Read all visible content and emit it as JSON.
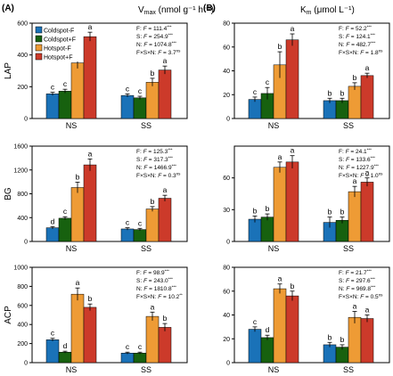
{
  "figure": {
    "panel_a_label": "(A)",
    "panel_b_label": "(B)",
    "col_a_title": "V",
    "col_a_sub": "max",
    "col_a_unit": " (nmol g⁻¹ h⁻¹)",
    "col_b_title": "K",
    "col_b_sub": "m",
    "col_b_unit": " (μmol L⁻¹)"
  },
  "legend": [
    {
      "label": "Coldspot-F",
      "color": "#1a72b8"
    },
    {
      "label": "Coldspot+F",
      "color": "#17610f"
    },
    {
      "label": "Hotspot-F",
      "color": "#ee9b35"
    },
    {
      "label": "Hotspot+F",
      "color": "#cc3a2a"
    }
  ],
  "chart_data": [
    {
      "type": "bar",
      "panel": "A",
      "row": "LAP",
      "ylabel": "LAP",
      "ylim": [
        0,
        600
      ],
      "yticks": [
        0,
        200,
        400,
        600
      ],
      "ytick_labels": [
        "0",
        "200",
        "400",
        "600"
      ],
      "groups": [
        "NS",
        "SS"
      ],
      "series": [
        {
          "name": "Coldspot-F",
          "values": [
            155,
            145
          ],
          "errors": [
            10,
            10
          ],
          "letters": [
            "c",
            "c"
          ]
        },
        {
          "name": "Coldspot+F",
          "values": [
            172,
            130
          ],
          "errors": [
            12,
            10
          ],
          "letters": [
            "c",
            "c"
          ]
        },
        {
          "name": "Hotspot-F",
          "values": [
            350,
            228
          ],
          "errors": [
            35,
            25
          ],
          "letters": [
            "b",
            "b"
          ]
        },
        {
          "name": "Hotspot+F",
          "values": [
            515,
            305
          ],
          "errors": [
            28,
            25
          ],
          "letters": [
            "a",
            "a"
          ]
        }
      ],
      "stats": [
        {
          "factor": "F",
          "value": "111.4",
          "sig": "***"
        },
        {
          "factor": "S",
          "value": "254.9",
          "sig": "***"
        },
        {
          "factor": "N",
          "value": "1074.8",
          "sig": "***"
        },
        {
          "factor": "F×S×N",
          "value": "3.7",
          "sig": "ns"
        }
      ]
    },
    {
      "type": "bar",
      "panel": "B",
      "row": "LAP",
      "ylabel": "",
      "ylim": [
        0,
        80
      ],
      "yticks": [
        0,
        20,
        40,
        60,
        80
      ],
      "ytick_labels": [
        "0",
        "20",
        "40",
        "60",
        "80"
      ],
      "groups": [
        "NS",
        "SS"
      ],
      "series": [
        {
          "name": "Coldspot-F",
          "values": [
            16,
            15
          ],
          "errors": [
            2,
            2
          ],
          "letters": [
            "c",
            "b"
          ]
        },
        {
          "name": "Coldspot+F",
          "values": [
            21,
            15
          ],
          "errors": [
            5,
            2
          ],
          "letters": [
            "c",
            "b"
          ]
        },
        {
          "name": "Hotspot-F",
          "values": [
            45,
            27
          ],
          "errors": [
            11,
            3
          ],
          "letters": [
            "b",
            "b"
          ]
        },
        {
          "name": "Hotspot+F",
          "values": [
            66,
            36
          ],
          "errors": [
            5,
            2
          ],
          "letters": [
            "a",
            "a"
          ]
        }
      ],
      "stats": [
        {
          "factor": "F",
          "value": "52.2",
          "sig": "***"
        },
        {
          "factor": "S",
          "value": "124.1",
          "sig": "***"
        },
        {
          "factor": "N",
          "value": "482.7",
          "sig": "***"
        },
        {
          "factor": "F×S×N",
          "value": "1.8",
          "sig": "ns"
        }
      ]
    },
    {
      "type": "bar",
      "panel": "A",
      "row": "BG",
      "ylabel": "BG",
      "ylim": [
        0,
        1600
      ],
      "yticks": [
        0,
        400,
        800,
        1200,
        1600
      ],
      "ytick_labels": [
        "0",
        "400",
        "800",
        "1200",
        "1600"
      ],
      "groups": [
        "NS",
        "SS"
      ],
      "series": [
        {
          "name": "Coldspot-F",
          "values": [
            230,
            210
          ],
          "errors": [
            20,
            20
          ],
          "letters": [
            "d",
            "c"
          ]
        },
        {
          "name": "Coldspot+F",
          "values": [
            390,
            200
          ],
          "errors": [
            25,
            20
          ],
          "letters": [
            "c",
            "c"
          ]
        },
        {
          "name": "Hotspot-F",
          "values": [
            905,
            545
          ],
          "errors": [
            90,
            40
          ],
          "letters": [
            "b",
            "b"
          ]
        },
        {
          "name": "Hotspot+F",
          "values": [
            1285,
            725
          ],
          "errors": [
            100,
            50
          ],
          "letters": [
            "a",
            "a"
          ]
        }
      ],
      "stats": [
        {
          "factor": "F",
          "value": "125.3",
          "sig": "***"
        },
        {
          "factor": "S",
          "value": "317.3",
          "sig": "***"
        },
        {
          "factor": "N",
          "value": "1466.9",
          "sig": "***"
        },
        {
          "factor": "F×S×N",
          "value": "0.3",
          "sig": "ns"
        }
      ]
    },
    {
      "type": "bar",
      "panel": "B",
      "row": "BG",
      "ylabel": "",
      "ylim": [
        0,
        90
      ],
      "yticks": [
        0,
        30,
        60
      ],
      "ytick_labels": [
        "0",
        "30",
        "60"
      ],
      "groups": [
        "NS",
        "SS"
      ],
      "series": [
        {
          "name": "Coldspot-F",
          "values": [
            21,
            18
          ],
          "errors": [
            3,
            5
          ],
          "letters": [
            "b",
            "b"
          ]
        },
        {
          "name": "Coldspot+F",
          "values": [
            23,
            20
          ],
          "errors": [
            3,
            3
          ],
          "letters": [
            "b",
            "b"
          ]
        },
        {
          "name": "Hotspot-F",
          "values": [
            70,
            47
          ],
          "errors": [
            5,
            5
          ],
          "letters": [
            "a",
            "a"
          ]
        },
        {
          "name": "Hotspot+F",
          "values": [
            75,
            56
          ],
          "errors": [
            6,
            4
          ],
          "letters": [
            "a",
            "a"
          ]
        }
      ],
      "stats": [
        {
          "factor": "F",
          "value": "24.1",
          "sig": "***"
        },
        {
          "factor": "S",
          "value": "133.6",
          "sig": "***"
        },
        {
          "factor": "N",
          "value": "1227.9",
          "sig": "***"
        },
        {
          "factor": "F×S×N",
          "value": "1.0",
          "sig": "ns"
        }
      ]
    },
    {
      "type": "bar",
      "panel": "A",
      "row": "ACP",
      "ylabel": "ACP",
      "ylim": [
        0,
        1000
      ],
      "yticks": [
        0,
        200,
        400,
        600,
        800,
        1000
      ],
      "ytick_labels": [
        "0",
        "200",
        "400",
        "600",
        "800",
        "1000"
      ],
      "groups": [
        "NS",
        "SS"
      ],
      "series": [
        {
          "name": "Coldspot-F",
          "values": [
            240,
            100
          ],
          "errors": [
            15,
            10
          ],
          "letters": [
            "c",
            "c"
          ]
        },
        {
          "name": "Coldspot+F",
          "values": [
            110,
            100
          ],
          "errors": [
            10,
            10
          ],
          "letters": [
            "d",
            "c"
          ]
        },
        {
          "name": "Hotspot-F",
          "values": [
            718,
            485
          ],
          "errors": [
            65,
            45
          ],
          "letters": [
            "a",
            "a"
          ]
        },
        {
          "name": "Hotspot+F",
          "values": [
            580,
            370
          ],
          "errors": [
            35,
            40
          ],
          "letters": [
            "b",
            "b"
          ]
        }
      ],
      "stats": [
        {
          "factor": "F",
          "value": "98.9",
          "sig": "***"
        },
        {
          "factor": "S",
          "value": "243.0",
          "sig": "***"
        },
        {
          "factor": "N",
          "value": "1810.8",
          "sig": "***"
        },
        {
          "factor": "F×S×N",
          "value": "10.2",
          "sig": "**"
        }
      ]
    },
    {
      "type": "bar",
      "panel": "B",
      "row": "ACP",
      "ylabel": "",
      "ylim": [
        0,
        80
      ],
      "yticks": [
        0,
        20,
        40,
        60,
        80
      ],
      "ytick_labels": [
        "0",
        "20",
        "40",
        "60",
        "80"
      ],
      "groups": [
        "NS",
        "SS"
      ],
      "series": [
        {
          "name": "Coldspot-F",
          "values": [
            28,
            15
          ],
          "errors": [
            2,
            2
          ],
          "letters": [
            "c",
            "b"
          ]
        },
        {
          "name": "Coldspot+F",
          "values": [
            21,
            13
          ],
          "errors": [
            2,
            2
          ],
          "letters": [
            "d",
            "b"
          ]
        },
        {
          "name": "Hotspot-F",
          "values": [
            62,
            38
          ],
          "errors": [
            4,
            5
          ],
          "letters": [
            "a",
            "a"
          ]
        },
        {
          "name": "Hotspot+F",
          "values": [
            56,
            37
          ],
          "errors": [
            4,
            3
          ],
          "letters": [
            "b",
            "a"
          ]
        }
      ],
      "stats": [
        {
          "factor": "F",
          "value": "21.7",
          "sig": "***"
        },
        {
          "factor": "S",
          "value": "297.6",
          "sig": "***"
        },
        {
          "factor": "N",
          "value": "969.8",
          "sig": "***"
        },
        {
          "factor": "F×S×N",
          "value": "0.5",
          "sig": "ns"
        }
      ]
    }
  ]
}
